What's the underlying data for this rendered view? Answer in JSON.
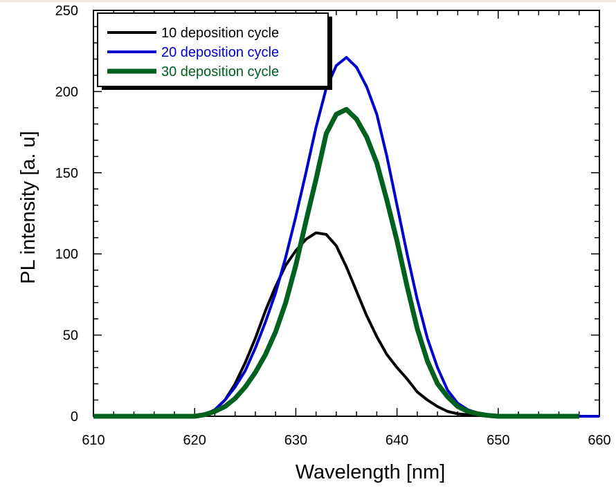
{
  "chart_data": {
    "type": "line",
    "title": "",
    "xlabel": "Wavelength [nm]",
    "ylabel": "PL intensity [a. u]",
    "xlim": [
      610,
      660
    ],
    "ylim": [
      0,
      250
    ],
    "xticks": [
      610,
      620,
      630,
      640,
      650,
      660
    ],
    "yticks": [
      0,
      50,
      100,
      150,
      200,
      250
    ],
    "xtick_labels": [
      "610",
      "620",
      "630",
      "640",
      "650",
      "660"
    ],
    "ytick_labels": [
      "0",
      "50",
      "100",
      "150",
      "200",
      "250"
    ],
    "x_minor_step": 2,
    "y_minor_step": 10,
    "grid": false,
    "legend": {
      "position": "top-left",
      "shadow": true
    },
    "series": [
      {
        "name": "10 deposition cycle",
        "color": "#000000",
        "x": [
          610,
          612,
          614,
          616,
          618,
          620,
          621,
          622,
          623,
          624,
          625,
          626,
          627,
          628,
          629,
          630,
          631,
          632,
          633,
          634,
          635,
          636,
          637,
          638,
          639,
          640,
          641,
          642,
          643,
          644,
          645,
          646,
          647,
          648,
          649,
          650
        ],
        "y": [
          0,
          0,
          0,
          0,
          0,
          0,
          1,
          4,
          10,
          20,
          33,
          48,
          65,
          80,
          93,
          102,
          109,
          113,
          112,
          105,
          92,
          77,
          62,
          49,
          38,
          30,
          23,
          15,
          10,
          6,
          3,
          1.5,
          1,
          0.5,
          0,
          0
        ]
      },
      {
        "name": "20 deposition cycle",
        "color": "#0000cc",
        "x": [
          610,
          612,
          614,
          616,
          618,
          620,
          621,
          622,
          623,
          624,
          625,
          626,
          627,
          628,
          629,
          630,
          631,
          632,
          633,
          634,
          635,
          636,
          637,
          638,
          639,
          640,
          641,
          642,
          643,
          644,
          645,
          646,
          647,
          648,
          649,
          650,
          652,
          654,
          656,
          658,
          660
        ],
        "y": [
          0,
          0,
          0,
          0,
          0,
          0,
          1,
          4,
          10,
          18,
          28,
          42,
          58,
          76,
          98,
          123,
          150,
          178,
          202,
          216,
          221,
          215,
          203,
          186,
          160,
          130,
          100,
          72,
          48,
          30,
          16,
          8,
          4,
          2,
          1,
          0,
          0,
          0,
          0,
          0,
          0
        ]
      },
      {
        "name": "30 deposition cycle",
        "color": "#006020",
        "x": [
          610,
          612,
          614,
          616,
          618,
          620,
          621,
          622,
          623,
          624,
          625,
          626,
          627,
          628,
          629,
          630,
          631,
          632,
          633,
          634,
          635,
          636,
          637,
          638,
          639,
          640,
          641,
          642,
          643,
          644,
          645,
          646,
          647,
          648,
          649,
          650,
          652,
          654,
          656,
          658
        ],
        "y": [
          0,
          0,
          0,
          0,
          0,
          0,
          1,
          3,
          6,
          11,
          18,
          27,
          38,
          52,
          70,
          93,
          120,
          146,
          174,
          186,
          189,
          183,
          172,
          156,
          133,
          108,
          80,
          54,
          34,
          20,
          12,
          6,
          3,
          1.5,
          0.5,
          0,
          0,
          0,
          0,
          0
        ]
      }
    ]
  }
}
